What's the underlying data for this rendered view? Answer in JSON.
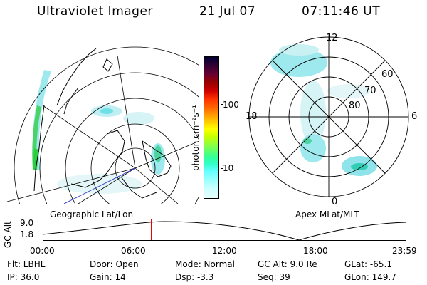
{
  "header": {
    "instrument": "Ultraviolet Imager",
    "date": "21 Jul 07",
    "time": "07:11:46 UT"
  },
  "colorbar": {
    "label": "photon cm⁻²s⁻¹",
    "ticks": [
      "100",
      "10"
    ],
    "colors": [
      "#000033",
      "#330033",
      "#660033",
      "#990000",
      "#cc0000",
      "#ff3300",
      "#ff6600",
      "#ff9900",
      "#ffcc00",
      "#ffff00",
      "#ccff00",
      "#99ff33",
      "#66ff66",
      "#33ff99",
      "#33ffcc",
      "#66ffff",
      "#99ffff",
      "#ccffff",
      "#e6ffff"
    ]
  },
  "left_map": {
    "caption": "Geographic Lat/Lon"
  },
  "right_map": {
    "caption": "Apex MLat/MLT",
    "mlt_labels": {
      "top": "12",
      "left": "18",
      "right": "6",
      "bottom": "0"
    },
    "lat_labels": [
      "60",
      "70",
      "80"
    ]
  },
  "altitude_plot": {
    "ylabel": "GC Alt",
    "y_ticks": [
      "9.0",
      "1.8"
    ],
    "x_ticks": [
      "00:00",
      "06:00",
      "12:00",
      "18:00",
      "23:59"
    ],
    "current_time_fraction": 0.297
  },
  "info": {
    "flt": "Flt: LBHL",
    "ip": "IP: 36.0",
    "door": "Door: Open",
    "gain": "Gain: 14",
    "mode": "Mode: Normal",
    "dsp": "Dsp:   -3.3",
    "gc_alt": "GC Alt: 9.0 Re",
    "seq": "Seq: 39",
    "glat": "GLat:  -65.1",
    "glon": "GLon: 149.7"
  }
}
